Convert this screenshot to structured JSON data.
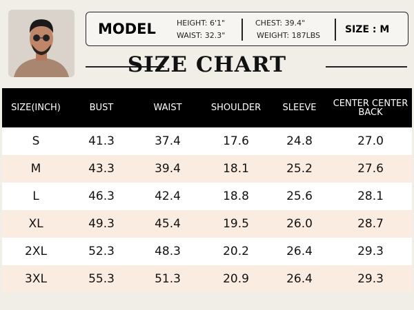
{
  "model": {
    "label": "MODEL",
    "height": "HEIGHT: 6'1\"",
    "waist": "WAIST: 32.3\"",
    "chest": "CHEST: 39.4\"",
    "weight": "WEIGHT: 187LBS",
    "size": "SIZE : M"
  },
  "title": "SIZE CHART",
  "table": {
    "header": [
      "SIZE(INCH)",
      "BUST",
      "WAIST",
      "SHOULDER",
      "SLEEVE",
      "CENTER CENTER BACK"
    ],
    "rows": [
      [
        "S",
        "41.3",
        "37.4",
        "17.6",
        "24.8",
        "27.0"
      ],
      [
        "M",
        "43.3",
        "39.4",
        "18.1",
        "25.2",
        "27.6"
      ],
      [
        "L",
        "46.3",
        "42.4",
        "18.8",
        "25.6",
        "28.1"
      ],
      [
        "XL",
        "49.3",
        "45.4",
        "19.5",
        "26.0",
        "28.7"
      ],
      [
        "2XL",
        "52.3",
        "48.3",
        "20.2",
        "26.4",
        "29.3"
      ],
      [
        "3XL",
        "55.3",
        "51.3",
        "20.9",
        "26.4",
        "29.3"
      ]
    ]
  }
}
